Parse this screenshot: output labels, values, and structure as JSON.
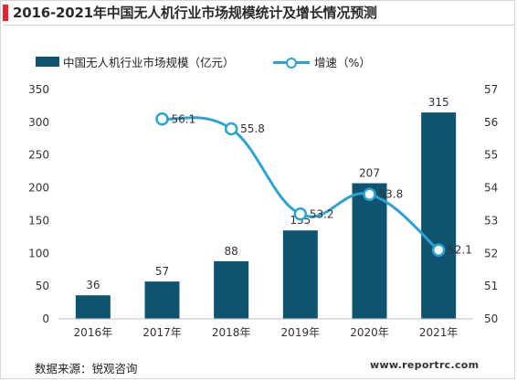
{
  "title": "2016-2021年中国无人机行业市场规模统计及增长情况预测",
  "legend": {
    "bar_label": "中国无人机行业市场规模（亿元）",
    "line_label": "增速（%）"
  },
  "source": "数据来源：锐观咨询",
  "watermark": "www.reportrc.com",
  "colors": {
    "bar": "#0e5470",
    "line": "#2ea3cf",
    "accent": "#e8232d"
  },
  "chart_data": {
    "type": "bar+line",
    "categories": [
      "2016年",
      "2017年",
      "2018年",
      "2019年",
      "2020年",
      "2021年"
    ],
    "series": [
      {
        "name": "中国无人机行业市场规模（亿元）",
        "type": "bar",
        "axis": "left",
        "values": [
          36,
          57,
          88,
          135,
          207,
          315
        ]
      },
      {
        "name": "增速（%）",
        "type": "line",
        "axis": "right",
        "values": [
          null,
          56.1,
          55.8,
          53.2,
          53.8,
          52.1
        ]
      }
    ],
    "y_left": {
      "min": 0,
      "max": 350,
      "ticks": [
        0,
        50,
        100,
        150,
        200,
        250,
        300,
        350
      ]
    },
    "y_right": {
      "min": 50,
      "max": 57,
      "ticks": [
        50,
        51,
        52,
        53,
        54,
        55,
        56,
        57
      ]
    },
    "grid": false,
    "legend_position": "top"
  }
}
